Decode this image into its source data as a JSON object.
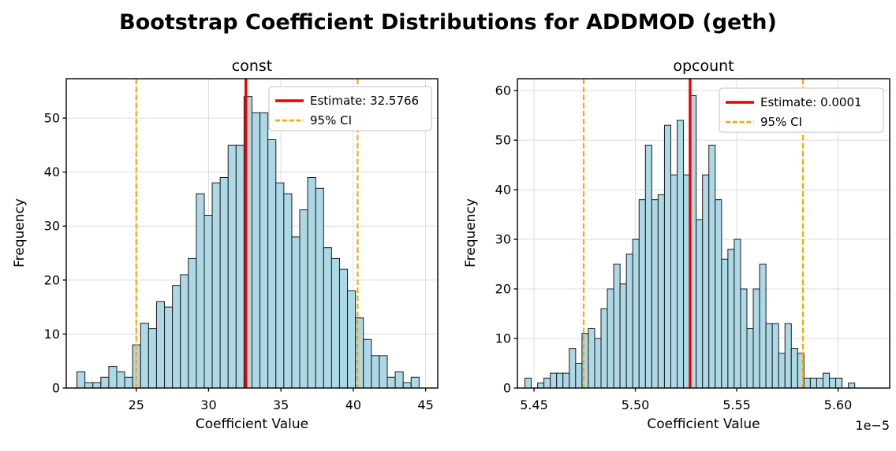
{
  "figure": {
    "title": "Bootstrap Coefficient Distributions for ADDMOD (geth)",
    "background": "#ffffff",
    "colors": {
      "bar_fill": "#ADD8E6",
      "bar_edge": "#1b1b1b",
      "estimate_line": "#ee0000",
      "ci_line": "#FFA500",
      "grid": "#dcdcdc",
      "spine": "#000000",
      "legend_border": "#cccccc",
      "legend_bg": "#ffffff"
    }
  },
  "chart_data": [
    {
      "type": "bar",
      "subtype": "histogram",
      "title": "const",
      "xlabel": "Coefficient Value",
      "ylabel": "Frequency",
      "legend": {
        "estimate_label": "Estimate: 32.5766",
        "ci_label": "95% CI",
        "position": "upper right"
      },
      "estimate": 32.5766,
      "ci_95": [
        25.0,
        40.3
      ],
      "xlim": [
        20.16,
        45.84
      ],
      "ylim": [
        0,
        57.3
      ],
      "xticks": [
        25,
        30,
        35,
        40,
        45
      ],
      "xtick_labels": [
        "25",
        "30",
        "35",
        "40",
        "45"
      ],
      "yticks": [
        0,
        10,
        20,
        30,
        40,
        50
      ],
      "ytick_labels": [
        "0",
        "10",
        "20",
        "30",
        "40",
        "50"
      ],
      "grid": true,
      "bins": {
        "start": 20.9,
        "width": 0.55,
        "counts": [
          3,
          1,
          1,
          2,
          4,
          3,
          2,
          8,
          12,
          11,
          16,
          15,
          19,
          21,
          24,
          36,
          32,
          38,
          39,
          45,
          45,
          54,
          51,
          51,
          46,
          38,
          36,
          28,
          33,
          39,
          37,
          26,
          24,
          22,
          18,
          13,
          9,
          6,
          6,
          2,
          3,
          1,
          2
        ]
      }
    },
    {
      "type": "bar",
      "subtype": "histogram",
      "title": "opcount",
      "xlabel": "Coefficient Value",
      "ylabel": "Frequency",
      "offset_text": "1e−5",
      "legend": {
        "estimate_label": "Estimate: 0.0001",
        "ci_label": "95% CI",
        "position": "upper right"
      },
      "estimate": 5.527,
      "ci_95": [
        5.4745,
        5.5827
      ],
      "xlim": [
        5.4418,
        5.6255
      ],
      "ylim": [
        0,
        62.4
      ],
      "xticks": [
        5.45,
        5.5,
        5.55,
        5.6
      ],
      "xtick_labels": [
        "5.45",
        "5.50",
        "5.55",
        "5.60"
      ],
      "yticks": [
        0,
        10,
        20,
        30,
        40,
        50,
        60
      ],
      "ytick_labels": [
        "0",
        "10",
        "20",
        "30",
        "40",
        "50",
        "60"
      ],
      "grid": true,
      "bins": {
        "start": 5.4455,
        "width": 0.00313,
        "counts": [
          2,
          0,
          1,
          2,
          3,
          3,
          3,
          8,
          5,
          11,
          12,
          10,
          16,
          20,
          25,
          21,
          27,
          30,
          38,
          49,
          38,
          39,
          53,
          43,
          54,
          43,
          59,
          34,
          43,
          49,
          38,
          26,
          28,
          30,
          20,
          12,
          20,
          25,
          13,
          13,
          7,
          13,
          8,
          7,
          2,
          2,
          2,
          3,
          2,
          2,
          0,
          1
        ]
      }
    }
  ]
}
